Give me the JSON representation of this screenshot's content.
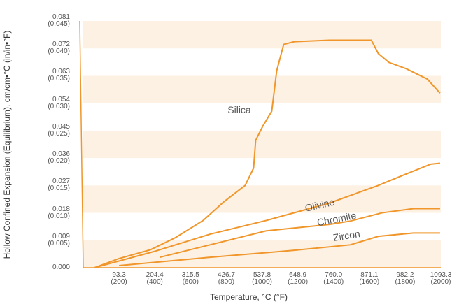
{
  "chart_data": {
    "type": "line",
    "x_label": "Temperature, °C (°F)",
    "y_label": "Hollow Confined Expansion (Equilibrium), cm/cm•°C (in/in•°F)",
    "xlim": [
      -17.8,
      1093.3
    ],
    "ylim": [
      0,
      0.081
    ],
    "xticks": [
      {
        "value": 93.3,
        "label": "93.3\n(200)"
      },
      {
        "value": 204.4,
        "label": "204.4\n(400)"
      },
      {
        "value": 315.5,
        "label": "315.5\n(600)"
      },
      {
        "value": 426.7,
        "label": "426.7\n(800)"
      },
      {
        "value": 537.8,
        "label": "537.8\n(1000)"
      },
      {
        "value": 648.9,
        "label": "648.9\n(1200)"
      },
      {
        "value": 760.0,
        "label": "760.0\n(1400)"
      },
      {
        "value": 871.1,
        "label": "871.1\n(1600)"
      },
      {
        "value": 982.2,
        "label": "982.2\n(1800)"
      },
      {
        "value": 1093.3,
        "label": "1093.3\n(2000)"
      }
    ],
    "yticks": [
      {
        "value": 0,
        "label": "0.000"
      },
      {
        "value": 0.009,
        "label": "0.009\n(0.005)"
      },
      {
        "value": 0.018,
        "label": "0.018\n(0.010)"
      },
      {
        "value": 0.027,
        "label": "0.027\n(0.015)"
      },
      {
        "value": 0.036,
        "label": "0.036\n(0.020)"
      },
      {
        "value": 0.045,
        "label": "0.045\n(0.025)"
      },
      {
        "value": 0.054,
        "label": "0.054\n(0.030)"
      },
      {
        "value": 0.063,
        "label": "0.063\n(0.035)"
      },
      {
        "value": 0.072,
        "label": "0.072\n(0.040)"
      },
      {
        "value": 0.081,
        "label": "0.081\n(0.045)"
      }
    ],
    "band_color": "#fdf1e3",
    "series": [
      {
        "name": "Silica",
        "color": "#f0962a",
        "x": [
          17,
          93.3,
          191.3,
          267.5,
          354.6,
          420,
          485.3,
          511.5,
          518,
          539.8,
          568,
          583.3,
          605,
          637.8,
          746.7,
          877.4,
          899,
          931.8,
          986.2,
          1051.6,
          1090.8
        ],
        "values": [
          0,
          0.003,
          0.0059,
          0.0098,
          0.0155,
          0.0217,
          0.027,
          0.0327,
          0.0418,
          0.0464,
          0.0514,
          0.0646,
          0.0733,
          0.0742,
          0.0747,
          0.0747,
          0.0703,
          0.0674,
          0.0653,
          0.0619,
          0.0573
        ]
      },
      {
        "name": "Olivine",
        "color": "#f0962a",
        "x": [
          17,
          202,
          376,
          551,
          746.7,
          899,
          986,
          1062,
          1091
        ],
        "values": [
          0,
          0.0053,
          0.011,
          0.0155,
          0.0212,
          0.027,
          0.0308,
          0.034,
          0.0343
        ]
      },
      {
        "name": "Chromite",
        "color": "#f0962a",
        "x": [
          219.6,
          376,
          551,
          747,
          812,
          910,
          1008,
          1091
        ],
        "values": [
          0.0034,
          0.0075,
          0.0121,
          0.0142,
          0.0153,
          0.018,
          0.0194,
          0.0194
        ]
      },
      {
        "name": "Zircon",
        "color": "#f0962a",
        "x": [
          93.3,
          376,
          637.8,
          812,
          899,
          1008,
          1091
        ],
        "values": [
          0.0007,
          0.0034,
          0.0057,
          0.0075,
          0.0103,
          0.0114,
          0.0114
        ]
      }
    ]
  }
}
